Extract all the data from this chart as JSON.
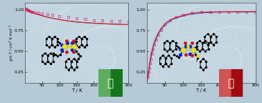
{
  "bg_color": "#b5cad6",
  "ax_bg": "#c2d5e0",
  "left_plot": {
    "xlabel": "T / K",
    "ylabel": "χm·T / cm³ K mol⁻¹",
    "xlim": [
      0,
      300
    ],
    "ylim": [
      0.12,
      1.08
    ],
    "yticks": [
      0.25,
      0.5,
      0.75,
      1.0
    ],
    "xticks": [
      50,
      100,
      150,
      200,
      250,
      300
    ],
    "scatter_x": [
      3,
      5,
      7,
      9,
      11,
      14,
      17,
      21,
      26,
      32,
      40,
      50,
      65,
      80,
      100,
      125,
      150,
      175,
      200,
      225,
      250,
      275,
      300
    ],
    "scatter_y": [
      1.01,
      1.005,
      1.0,
      0.995,
      0.99,
      0.985,
      0.98,
      0.975,
      0.97,
      0.965,
      0.96,
      0.955,
      0.945,
      0.935,
      0.925,
      0.91,
      0.895,
      0.885,
      0.875,
      0.87,
      0.865,
      0.86,
      0.855
    ],
    "fit_x": [
      2,
      3,
      4,
      5,
      6,
      7,
      8,
      10,
      12,
      15,
      18,
      22,
      27,
      33,
      40,
      50,
      65,
      80,
      100,
      125,
      150,
      175,
      200,
      250,
      300
    ],
    "fit_y_red": [
      1.015,
      1.012,
      1.008,
      1.005,
      1.001,
      0.998,
      0.995,
      0.99,
      0.985,
      0.979,
      0.973,
      0.966,
      0.958,
      0.95,
      0.94,
      0.928,
      0.912,
      0.898,
      0.882,
      0.866,
      0.853,
      0.845,
      0.838,
      0.828,
      0.822
    ],
    "fit_y_blue": [
      1.015,
      1.012,
      1.008,
      1.005,
      1.001,
      0.998,
      0.995,
      0.99,
      0.985,
      0.979,
      0.973,
      0.966,
      0.958,
      0.95,
      0.94,
      0.928,
      0.912,
      0.898,
      0.882,
      0.866,
      0.853,
      0.845,
      0.838,
      0.828,
      0.822
    ],
    "thumb_color": "#1e8c1e"
  },
  "right_plot": {
    "xlabel": "T / K",
    "ylabel": "",
    "xlim": [
      0,
      300
    ],
    "ylim": [
      0.12,
      1.08
    ],
    "yticks": [
      0.25,
      0.5,
      0.75,
      1.0
    ],
    "xticks": [
      50,
      100,
      150,
      200,
      250,
      300
    ],
    "scatter_x": [
      3,
      5,
      7,
      9,
      11,
      14,
      17,
      21,
      26,
      32,
      40,
      50,
      65,
      80,
      100,
      125,
      150,
      175,
      200,
      225,
      250,
      275,
      300
    ],
    "scatter_y": [
      0.2,
      0.25,
      0.3,
      0.36,
      0.41,
      0.47,
      0.52,
      0.58,
      0.64,
      0.7,
      0.76,
      0.82,
      0.87,
      0.91,
      0.94,
      0.96,
      0.97,
      0.97,
      0.97,
      0.97,
      0.97,
      0.97,
      0.97
    ],
    "fit_x": [
      2,
      3,
      5,
      7,
      9,
      12,
      15,
      20,
      26,
      33,
      42,
      55,
      70,
      90,
      115,
      150,
      200,
      300
    ],
    "fit_y_red": [
      0.17,
      0.2,
      0.27,
      0.33,
      0.39,
      0.46,
      0.52,
      0.6,
      0.67,
      0.73,
      0.79,
      0.85,
      0.89,
      0.92,
      0.95,
      0.97,
      0.975,
      0.978
    ],
    "fit_y_blue": [
      0.14,
      0.17,
      0.23,
      0.29,
      0.35,
      0.42,
      0.48,
      0.57,
      0.64,
      0.71,
      0.77,
      0.83,
      0.88,
      0.91,
      0.94,
      0.96,
      0.97,
      0.975
    ],
    "thumb_color": "#bb1111"
  },
  "scatter_ec": "#dd3388",
  "line_red": "#cc2222",
  "line_blue": "#2233bb"
}
